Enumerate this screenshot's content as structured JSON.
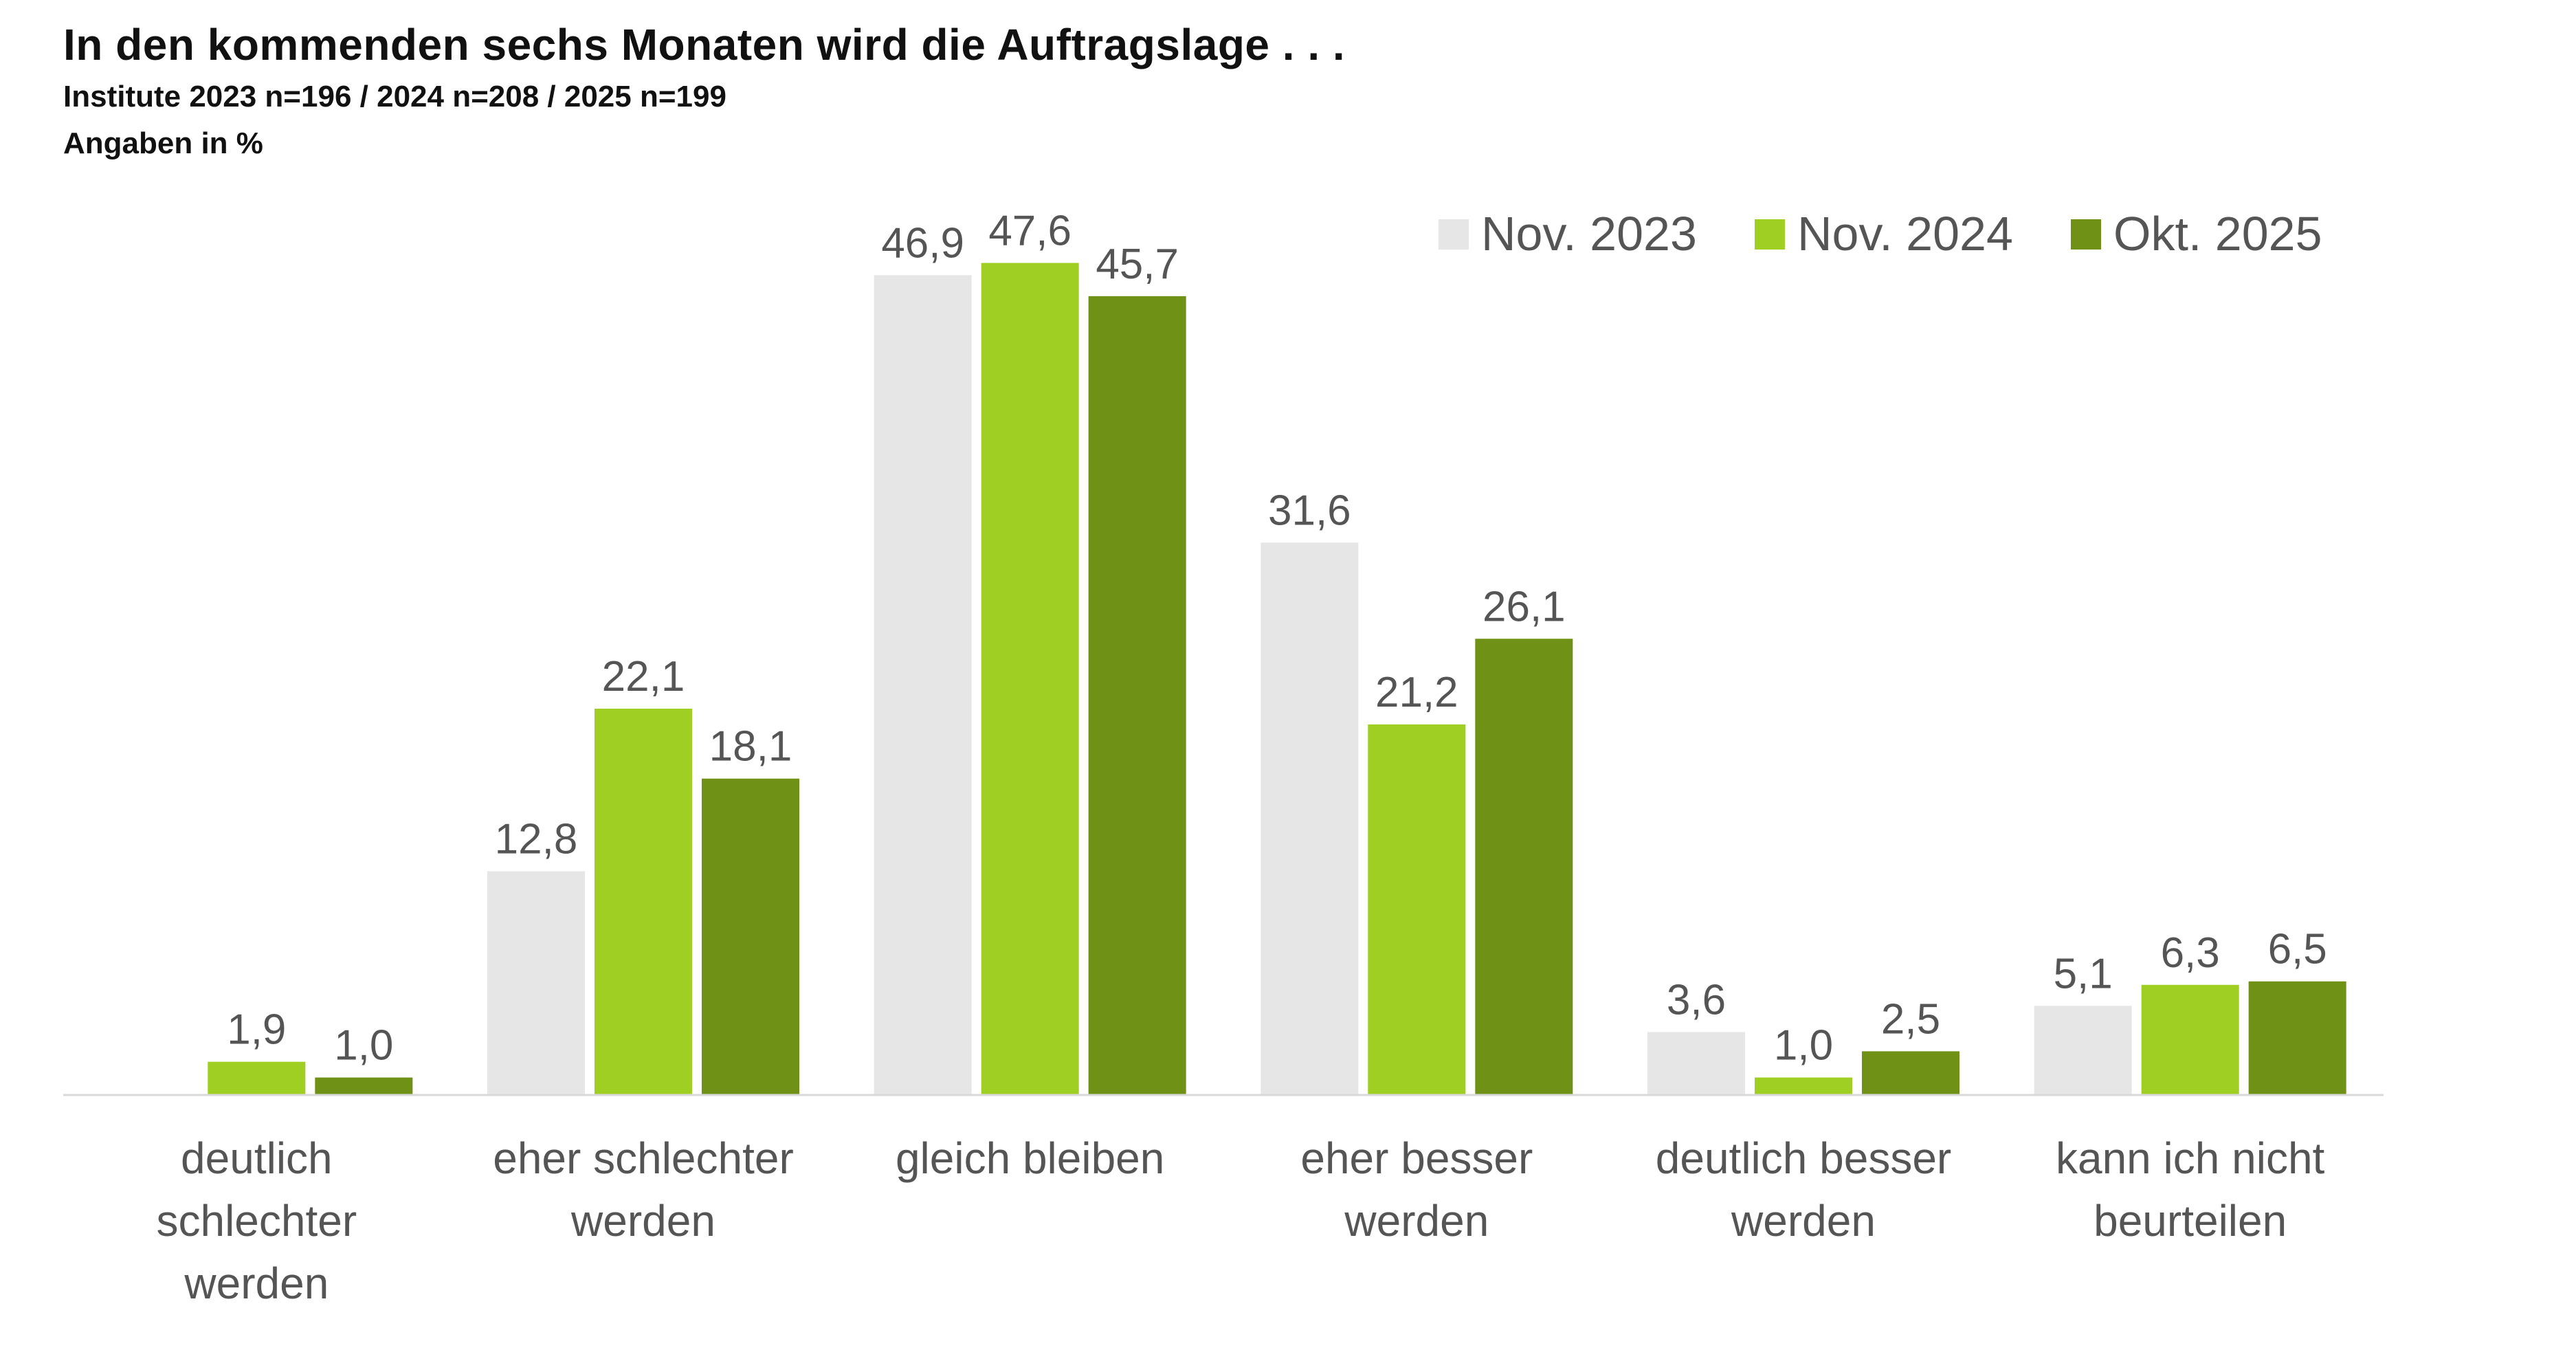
{
  "chart_data": {
    "type": "bar",
    "title": "In den kommenden sechs Monaten wird die Auftragslage . . .",
    "subtitle": "Institute 2023 n=196 / 2024 n=208 / 2025 n=199",
    "unit_note": "Angaben in %",
    "categories": [
      [
        "deutlich",
        "schlechter",
        "werden"
      ],
      [
        "eher schlechter",
        "werden"
      ],
      [
        "gleich bleiben"
      ],
      [
        "eher besser",
        "werden"
      ],
      [
        "deutlich besser",
        "werden"
      ],
      [
        "kann ich nicht",
        "beurteilen"
      ]
    ],
    "series": [
      {
        "name": "Nov. 2023",
        "color": "#e6e6e6",
        "values": [
          0,
          12.8,
          46.9,
          31.6,
          3.6,
          5.1
        ],
        "labels": [
          null,
          "12,8",
          "46,9",
          "31,6",
          "3,6",
          "5,1"
        ]
      },
      {
        "name": "Nov. 2024",
        "color": "#9ecf22",
        "values": [
          1.9,
          22.1,
          47.6,
          21.2,
          1.0,
          6.3
        ],
        "labels": [
          "1,9",
          "22,1",
          "47,6",
          "21,2",
          "1,0",
          "6,3"
        ]
      },
      {
        "name": "Okt. 2025",
        "color": "#6e9116",
        "values": [
          1.0,
          18.1,
          45.7,
          26.1,
          2.5,
          6.5
        ],
        "labels": [
          "1,0",
          "18,1",
          "45,7",
          "26,1",
          "2,5",
          "6,5"
        ]
      }
    ],
    "ylim": [
      0,
      50
    ],
    "grid": false,
    "legend_position": "top-right",
    "baseline_color": "#d9d9d9"
  }
}
